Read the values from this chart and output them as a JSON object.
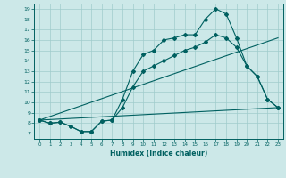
{
  "xlabel": "Humidex (Indice chaleur)",
  "bg_color": "#cce8e8",
  "line_color": "#006060",
  "grid_color": "#a0cccc",
  "xlim": [
    -0.5,
    23.5
  ],
  "ylim": [
    6.5,
    19.5
  ],
  "xticks": [
    0,
    1,
    2,
    3,
    4,
    5,
    6,
    7,
    8,
    9,
    10,
    11,
    12,
    13,
    14,
    15,
    16,
    17,
    18,
    19,
    20,
    21,
    22,
    23
  ],
  "yticks": [
    7,
    8,
    9,
    10,
    11,
    12,
    13,
    14,
    15,
    16,
    17,
    18,
    19
  ],
  "line1_x": [
    0,
    1,
    2,
    3,
    4,
    5,
    6,
    7,
    8,
    9,
    10,
    11,
    12,
    13,
    14,
    15,
    16,
    17,
    18,
    19,
    20,
    21,
    22,
    23
  ],
  "line1_y": [
    8.3,
    8.0,
    8.1,
    7.7,
    7.2,
    7.2,
    8.2,
    8.3,
    10.3,
    13.0,
    14.6,
    15.0,
    16.0,
    16.2,
    16.5,
    16.5,
    18.0,
    19.0,
    18.5,
    16.2,
    13.5,
    12.5,
    10.3,
    9.5
  ],
  "line2_x": [
    0,
    1,
    2,
    3,
    4,
    5,
    6,
    7,
    8,
    9,
    10,
    11,
    12,
    13,
    14,
    15,
    16,
    17,
    18,
    19,
    20,
    21,
    22,
    23
  ],
  "line2_y": [
    8.3,
    8.0,
    8.1,
    7.7,
    7.2,
    7.2,
    8.2,
    8.3,
    9.5,
    11.5,
    13.0,
    13.5,
    14.0,
    14.5,
    15.0,
    15.3,
    15.8,
    16.5,
    16.2,
    15.3,
    13.5,
    12.5,
    10.3,
    9.5
  ],
  "line3_x": [
    0,
    23
  ],
  "line3_y": [
    8.3,
    9.5
  ],
  "line4_x": [
    0,
    23
  ],
  "line4_y": [
    8.3,
    16.2
  ]
}
